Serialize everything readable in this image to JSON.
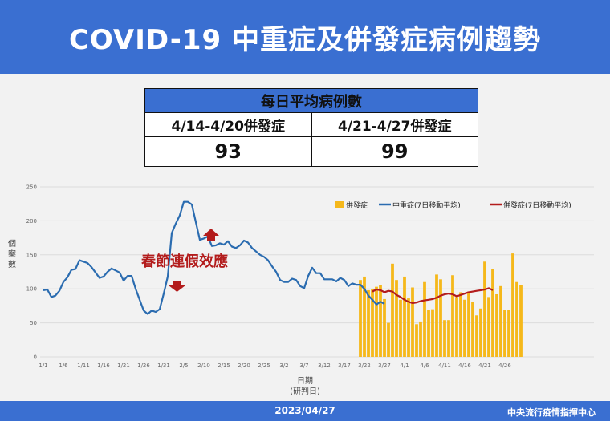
{
  "header": {
    "title": "COVID-19 中重症及併發症病例趨勢"
  },
  "table": {
    "title": "每日平均病例數",
    "col1_label": "4/14-4/20併發症",
    "col2_label": "4/21-4/27併發症",
    "col1_value": "93",
    "col2_value": "99"
  },
  "footer": {
    "date": "2023/04/27",
    "org": "中央流行疫情指揮中心"
  },
  "colors": {
    "header_bg": "#3a6fd1",
    "bar": "#f5b81b",
    "severe_line": "#2b6cb0",
    "comp_line": "#b31c1c",
    "annotation": "#b31c1c"
  },
  "chart_data": {
    "type": "bar+line",
    "xlabel": "日期",
    "xlabel_sub": "(研判日)",
    "ylabel": "個案數",
    "ylim": [
      0,
      250
    ],
    "yticks": [
      0,
      50,
      100,
      150,
      200,
      250
    ],
    "x_tick_labels": [
      "1/1",
      "1/6",
      "1/11",
      "1/16",
      "1/21",
      "1/26",
      "1/31",
      "2/5",
      "2/10",
      "2/15",
      "2/20",
      "2/25",
      "3/2",
      "3/7",
      "3/12",
      "3/17",
      "3/22",
      "3/27",
      "4/1",
      "4/6",
      "4/11",
      "4/16",
      "4/21",
      "4/26"
    ],
    "legend": [
      "併發症",
      "中重症(7日移動平均)",
      "併發症(7日移動平均)"
    ],
    "annotation": "春節連假效應",
    "severe_ma7": {
      "start": "1/1",
      "values": [
        98,
        99,
        88,
        90,
        97,
        110,
        117,
        128,
        129,
        142,
        140,
        138,
        132,
        124,
        116,
        118,
        125,
        130,
        127,
        124,
        112,
        119,
        119,
        100,
        84,
        68,
        63,
        68,
        66,
        70,
        93,
        118,
        182,
        196,
        208,
        228,
        228,
        224,
        198,
        172,
        174,
        177,
        163,
        164,
        167,
        165,
        170,
        162,
        160,
        164,
        171,
        168,
        160,
        155,
        150,
        147,
        142,
        133,
        125,
        113,
        110,
        110,
        115,
        113,
        104,
        101,
        119,
        131,
        123,
        123,
        114,
        114,
        114,
        111,
        116,
        113,
        104,
        108,
        106,
        106,
        100,
        90,
        84,
        77,
        81,
        78
      ]
    },
    "complications": {
      "start": "3/21",
      "values": [
        113,
        118,
        98,
        100,
        103,
        105,
        85,
        50,
        137,
        113,
        84,
        118,
        86,
        102,
        48,
        52,
        110,
        69,
        70,
        121,
        114,
        54,
        54,
        120,
        88,
        95,
        84,
        96,
        81,
        61,
        71,
        140,
        88,
        129,
        92,
        104,
        69,
        69,
        152,
        110,
        105
      ]
    },
    "comp_ma7": {
      "start": "3/24",
      "values": [
        96,
        99,
        98,
        95,
        97,
        96,
        91,
        88,
        84,
        81,
        79,
        80,
        82,
        83,
        84,
        85,
        87,
        90,
        92,
        93,
        92,
        89,
        91,
        93,
        95,
        96,
        97,
        98,
        99,
        101,
        98
      ]
    }
  }
}
